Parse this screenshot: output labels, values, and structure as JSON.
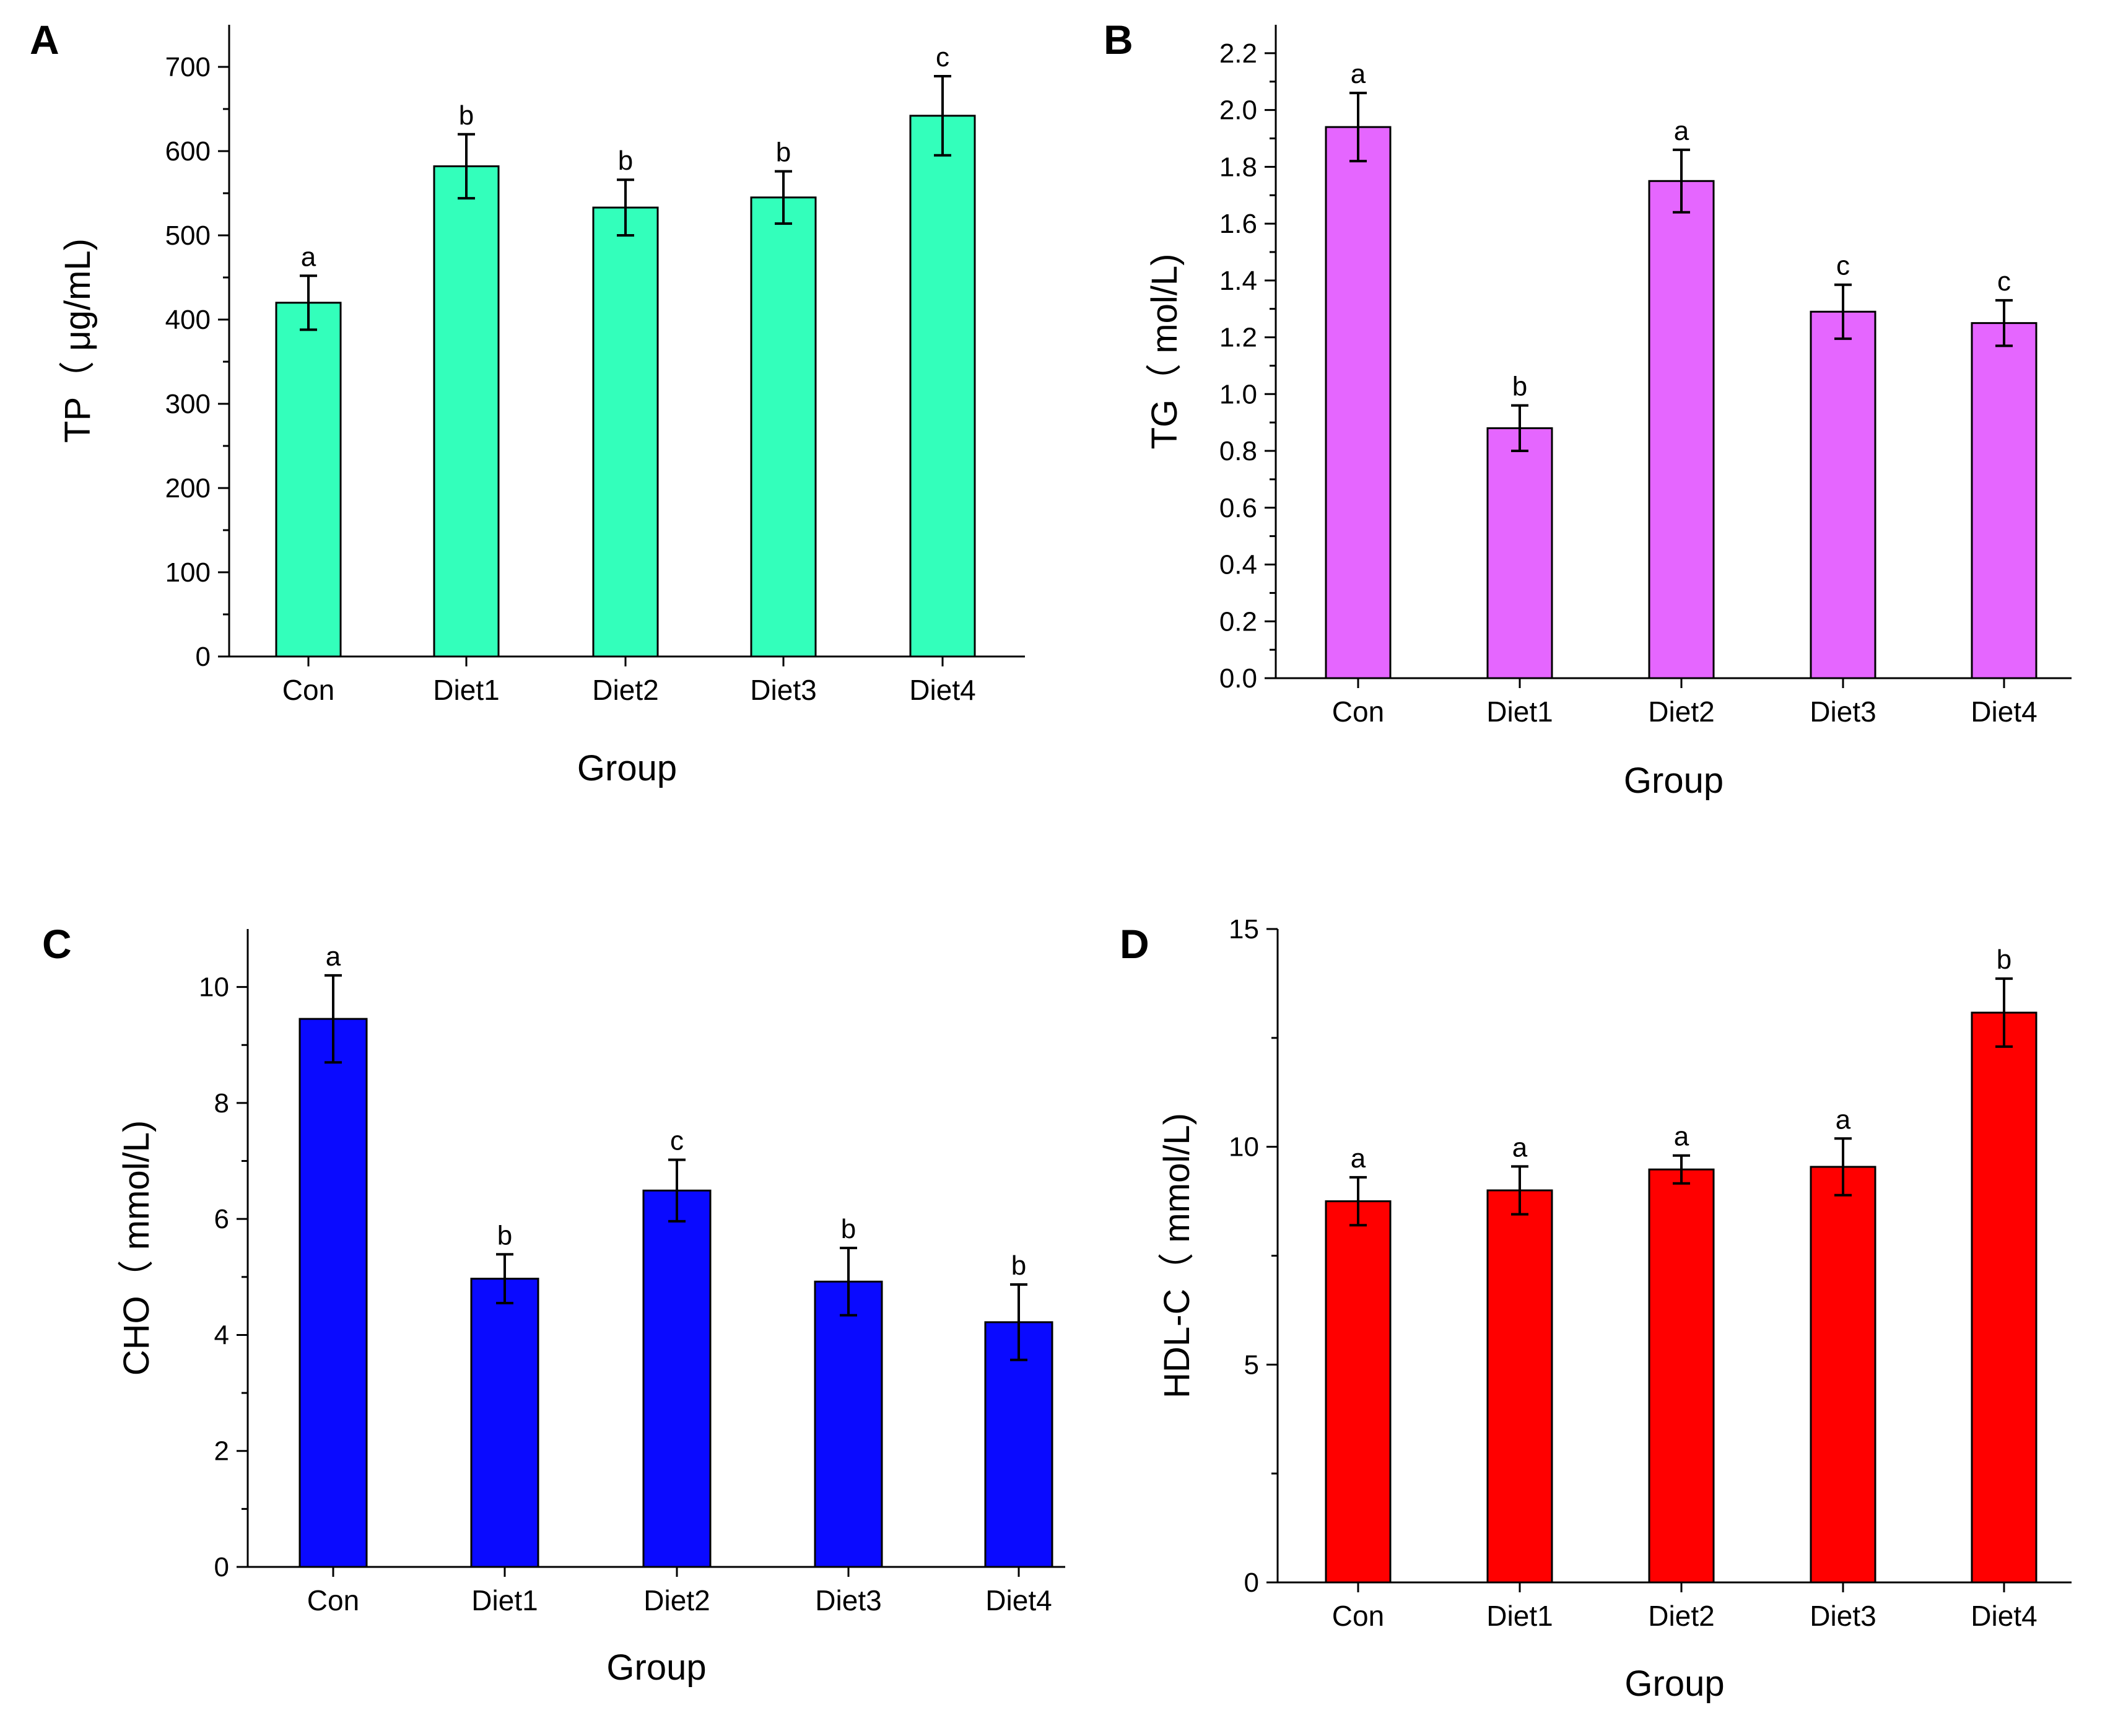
{
  "figure": {
    "type": "multi-panel bar chart",
    "panels": 4
  },
  "chart_data": [
    {
      "panel": "A",
      "type": "bar",
      "categories": [
        "Con",
        "Diet1",
        "Diet2",
        "Diet3",
        "Diet4"
      ],
      "values": [
        420,
        582,
        533,
        545,
        642
      ],
      "errors": [
        32,
        38,
        33,
        31,
        47
      ],
      "significance": [
        "a",
        "b",
        "b",
        "b",
        "c"
      ],
      "ylabel": "TP（ μg/mL)",
      "xlabel": "Group",
      "ylim": [
        0,
        750
      ],
      "yticks": [
        0,
        100,
        200,
        300,
        400,
        500,
        600,
        700
      ],
      "ytick_labels": [
        "0",
        "100",
        "200",
        "300",
        "400",
        "500",
        "600",
        "700"
      ],
      "color": "#33FFBB"
    },
    {
      "panel": "B",
      "type": "bar",
      "categories": [
        "Con",
        "Diet1",
        "Diet2",
        "Diet3",
        "Diet4"
      ],
      "values": [
        1.94,
        0.88,
        1.75,
        1.29,
        1.25
      ],
      "errors": [
        0.12,
        0.08,
        0.11,
        0.095,
        0.08
      ],
      "significance": [
        "a",
        "b",
        "a",
        "c",
        "c"
      ],
      "ylabel": "TG（ mol/L)",
      "xlabel": "Group",
      "ylim": [
        0,
        2.3
      ],
      "yticks": [
        0,
        0.2,
        0.4,
        0.6,
        0.8,
        1.0,
        1.2,
        1.4,
        1.6,
        1.8,
        2.0,
        2.2
      ],
      "ytick_labels": [
        "0.0",
        "0.2",
        "0.4",
        "0.6",
        "0.8",
        "1.0",
        "1.2",
        "1.4",
        "1.6",
        "1.8",
        "2.0",
        "2.2"
      ],
      "color": "#E566FF"
    },
    {
      "panel": "C",
      "type": "bar",
      "categories": [
        "Con",
        "Diet1",
        "Diet2",
        "Diet3",
        "Diet4"
      ],
      "values": [
        9.45,
        4.97,
        6.49,
        4.92,
        4.22
      ],
      "errors": [
        0.75,
        0.42,
        0.53,
        0.58,
        0.65
      ],
      "significance": [
        "a",
        "b",
        "c",
        "b",
        "b"
      ],
      "ylabel": "CHO（ mmol/L)",
      "xlabel": "Group",
      "ylim": [
        0,
        11
      ],
      "yticks": [
        0,
        2,
        4,
        6,
        8,
        10
      ],
      "ytick_labels": [
        "0",
        "2",
        "4",
        "6",
        "8",
        "10"
      ],
      "color": "#0A0AFF"
    },
    {
      "panel": "D",
      "type": "bar",
      "categories": [
        "Con",
        "Diet1",
        "Diet2",
        "Diet3",
        "Diet4"
      ],
      "values": [
        8.75,
        9.0,
        9.48,
        9.54,
        13.08
      ],
      "errors": [
        0.55,
        0.55,
        0.32,
        0.65,
        0.78
      ],
      "significance": [
        "a",
        "a",
        "a",
        "a",
        "b"
      ],
      "ylabel": "HDL-C（ mmol/L)",
      "xlabel": "Group",
      "ylim": [
        0,
        15
      ],
      "yticks": [
        0,
        5,
        10,
        15
      ],
      "ytick_labels": [
        "0",
        "5",
        "10",
        "15"
      ],
      "color": "#FF0000"
    }
  ]
}
